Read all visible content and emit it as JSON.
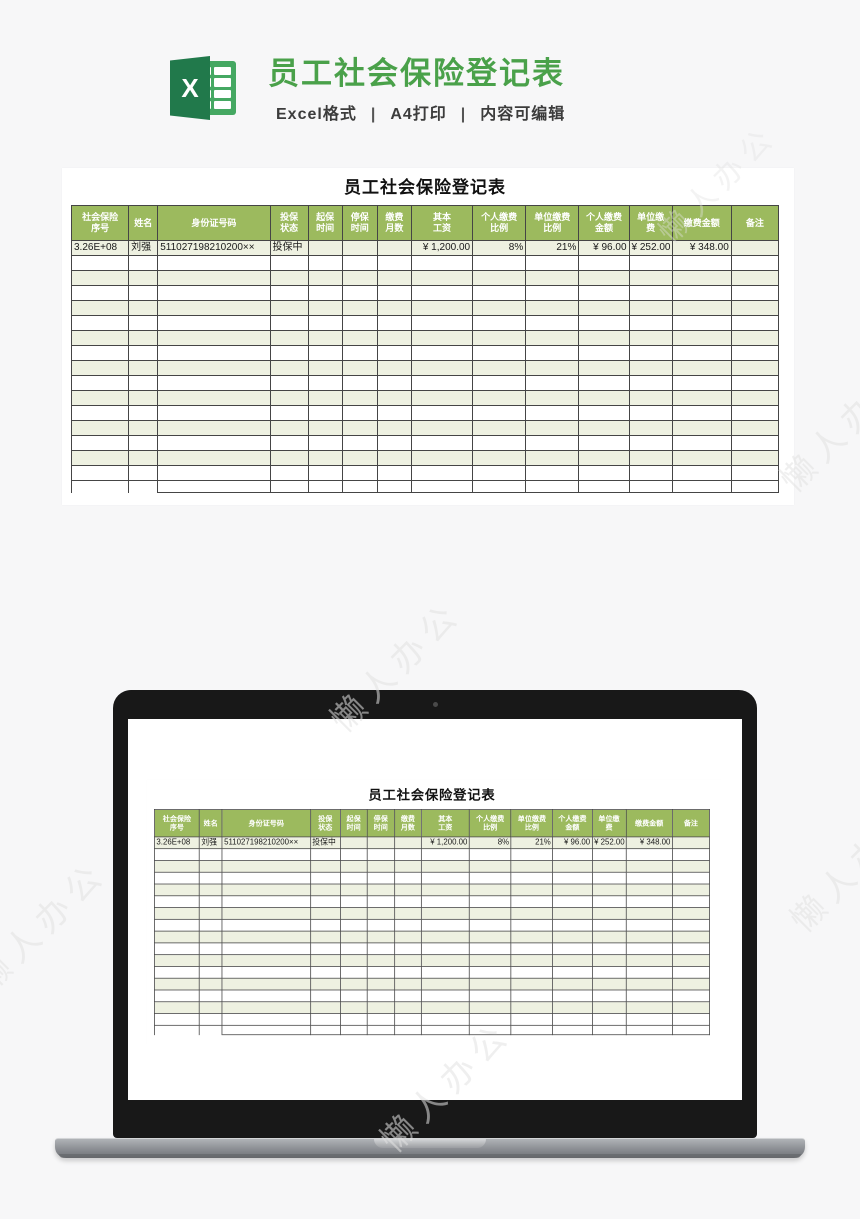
{
  "page": {
    "watermark": "懒人办公",
    "background": "#f7f7f8"
  },
  "hero": {
    "logo_letter": "X",
    "title": "员工社会保险登记表",
    "title_color": "#4aa14a",
    "subtitle_parts": [
      "Excel格式",
      "A4打印",
      "内容可编辑"
    ],
    "subtitle_separator": "|"
  },
  "sheet": {
    "title": "员工社会保险登记表",
    "colors": {
      "header_bg": "#9cba5e",
      "header_text": "#ffffff",
      "band_row": "#eef1e1",
      "grid_border": "#454545"
    },
    "columns": [
      {
        "label_lines": [
          "社会保险",
          "序号"
        ],
        "width": 57,
        "align": "left"
      },
      {
        "label_lines": [
          "姓名"
        ],
        "width": 29,
        "align": "left"
      },
      {
        "label_lines": [
          "身份证号码"
        ],
        "width": 112,
        "align": "left"
      },
      {
        "label_lines": [
          "投保",
          "状态"
        ],
        "width": 38,
        "align": "left"
      },
      {
        "label_lines": [
          "起保",
          "时间"
        ],
        "width": 34,
        "align": "left"
      },
      {
        "label_lines": [
          "停保",
          "时间"
        ],
        "width": 35,
        "align": "left"
      },
      {
        "label_lines": [
          "缴费",
          "月数"
        ],
        "width": 34,
        "align": "left"
      },
      {
        "label_lines": [
          "其本",
          "工资"
        ],
        "width": 61,
        "align": "right"
      },
      {
        "label_lines": [
          "个人缴费",
          "比例"
        ],
        "width": 53,
        "align": "right"
      },
      {
        "label_lines": [
          "单位缴费",
          "比例"
        ],
        "width": 53,
        "align": "right"
      },
      {
        "label_lines": [
          "个人缴费",
          "金额"
        ],
        "width": 50,
        "align": "right"
      },
      {
        "label_lines": [
          "单位缴",
          "费"
        ],
        "width": 43,
        "align": "right"
      },
      {
        "label_lines": [
          "缴费金额"
        ],
        "width": 59,
        "align": "right"
      },
      {
        "label_lines": [
          "备注"
        ],
        "width": 47,
        "align": "left"
      }
    ],
    "data_row": [
      "3.26E+08",
      "刘强",
      "511027198210200××",
      "投保中",
      "",
      "",
      "",
      "¥ 1,200.00",
      "8%",
      "21%",
      "¥ 96.00",
      "¥ 252.00",
      "¥  348.00",
      ""
    ],
    "empty_row_count": 15,
    "has_partial_last_row": true
  }
}
